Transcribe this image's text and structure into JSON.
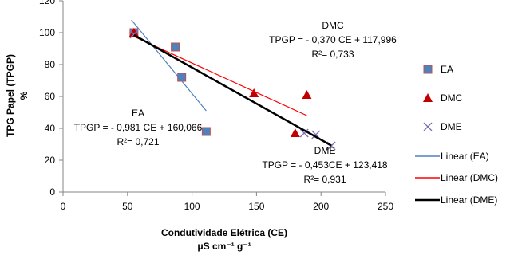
{
  "chart_data": {
    "type": "scatter",
    "ylabel": [
      "TPG Papel (TPGP)",
      "%"
    ],
    "xlabel": [
      "Condutividade Elétrica (CE)",
      "μS cm⁻¹ g⁻¹"
    ],
    "xlim": [
      0,
      250
    ],
    "xticks": [
      0,
      50,
      100,
      150,
      200,
      250
    ],
    "ylim": [
      0,
      120
    ],
    "yticks": [
      0,
      20,
      40,
      60,
      80,
      100,
      120
    ],
    "legend": "right",
    "series": [
      {
        "name": "EA",
        "kind": "marker",
        "marker": "square",
        "color": "#4f81bd",
        "x": [
          55,
          87,
          92,
          111
        ],
        "values": [
          100,
          91,
          72,
          38
        ]
      },
      {
        "name": "DMC",
        "kind": "marker",
        "marker": "triangle",
        "color": "#c00000",
        "x": [
          55,
          148,
          189,
          180
        ],
        "values": [
          100,
          62,
          61,
          37
        ]
      },
      {
        "name": "DME",
        "kind": "marker",
        "marker": "cross",
        "color": "#7f6fb5",
        "x": [
          55,
          187,
          196,
          208
        ],
        "values": [
          99,
          37,
          36,
          29
        ]
      },
      {
        "name": "Linear (EA)",
        "kind": "line",
        "color": "#4f81bd",
        "x": [
          53,
          111
        ],
        "values": [
          108,
          51
        ]
      },
      {
        "name": "Linear (DMC)",
        "kind": "line",
        "color": "#ff0000",
        "x": [
          55,
          189
        ],
        "values": [
          97.6,
          48
        ]
      },
      {
        "name": "Linear (DME)",
        "kind": "line",
        "color": "#000000",
        "x": [
          55,
          208
        ],
        "values": [
          98.5,
          29.2
        ]
      }
    ],
    "annotations": [
      [
        "EA",
        "TPGP = - 0,981 CE + 160,066",
        "R²= 0,721"
      ],
      [
        "DMC",
        "TPGP = - 0,370 CE + 117,996",
        "R²= 0,733"
      ],
      [
        "DME",
        "TPGP = - 0,453CE + 123,418",
        "R²= 0,931"
      ]
    ]
  }
}
